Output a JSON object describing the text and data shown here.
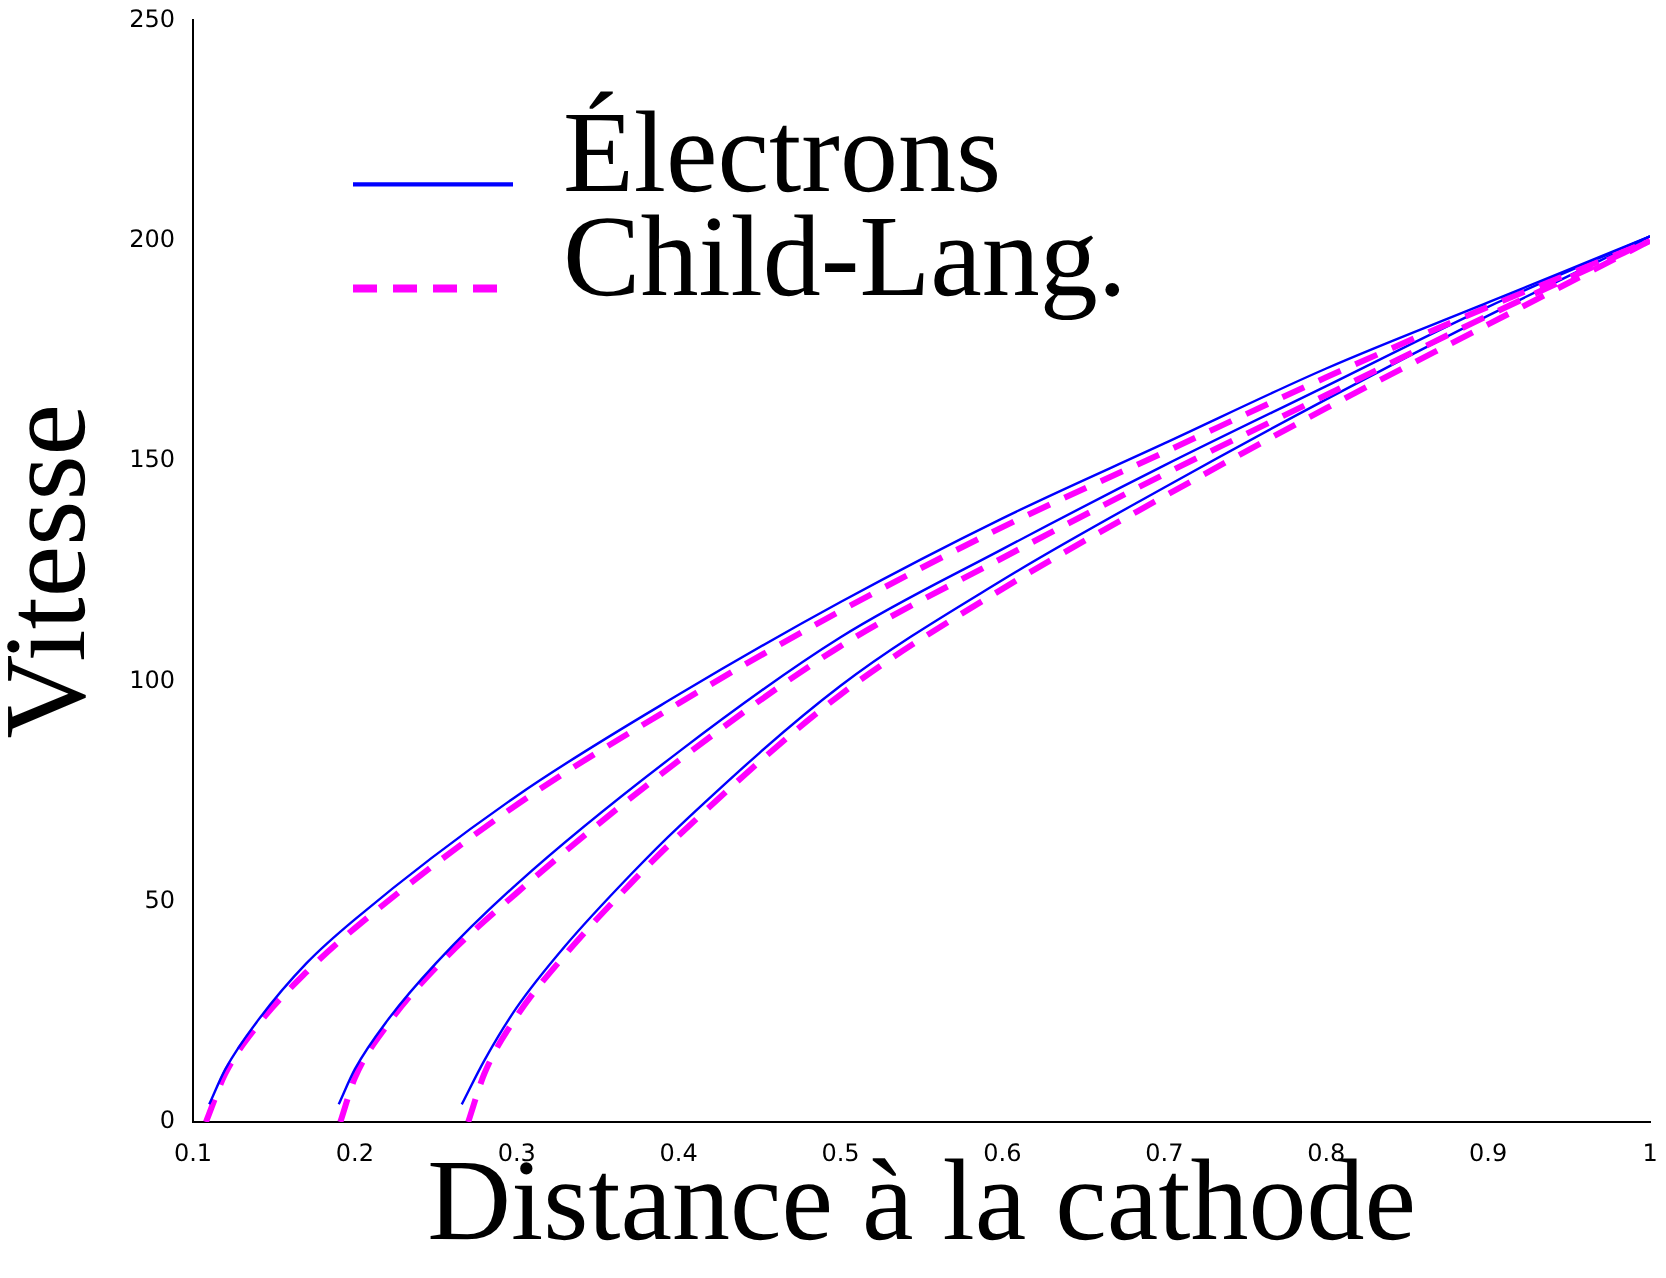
{
  "chart_data": {
    "type": "line",
    "xlabel": "Distance à la cathode",
    "ylabel": "Vitesse",
    "xlim": [
      0.1,
      1
    ],
    "xticks": [
      0.1,
      0.2,
      0.3,
      0.4,
      0.5,
      0.6,
      0.7,
      0.8,
      0.9,
      1
    ],
    "ylim": [
      0,
      250
    ],
    "yticks": [
      0,
      50,
      100,
      150,
      200,
      250
    ],
    "grid": false,
    "legend": "top left",
    "marker": "none",
    "series": [
      {
        "name": "Électrons",
        "color": "#0000ff",
        "line_style": "solid",
        "x": [
          0.11,
          0.12,
          0.14,
          0.17,
          0.2,
          0.3,
          0.4,
          0.5,
          0.6,
          0.7,
          0.8,
          0.9,
          1
        ],
        "values": [
          4,
          12,
          23,
          36,
          46,
          74,
          97,
          118,
          137,
          154,
          171,
          186,
          201
        ]
      },
      {
        "name": "Child-Lang.",
        "color": "#ff00ff",
        "line_style": "dashed",
        "x": [
          0.108,
          0.12,
          0.14,
          0.17,
          0.2,
          0.3,
          0.4,
          0.5,
          0.6,
          0.7,
          0.8,
          0.9,
          1
        ],
        "values": [
          0,
          11,
          22,
          34,
          44,
          72,
          95,
          116,
          135,
          152,
          169,
          185,
          200
        ]
      },
      {
        "color": "#0000ff",
        "line_style": "solid",
        "x": [
          0.19,
          0.2,
          0.22,
          0.25,
          0.3,
          0.4,
          0.5,
          0.6,
          0.7,
          0.8,
          0.9,
          1
        ],
        "values": [
          4,
          12,
          23,
          36,
          54,
          84,
          110,
          130,
          149,
          167,
          185,
          201
        ]
      },
      {
        "color": "#ff00ff",
        "line_style": "dashed",
        "x": [
          0.191,
          0.2,
          0.22,
          0.25,
          0.3,
          0.4,
          0.5,
          0.6,
          0.7,
          0.8,
          0.9,
          1
        ],
        "values": [
          0,
          10,
          22,
          35,
          52,
          82,
          108,
          128,
          147,
          165,
          183,
          200
        ]
      },
      {
        "color": "#0000ff",
        "line_style": "solid",
        "x": [
          0.266,
          0.28,
          0.3,
          0.33,
          0.37,
          0.4,
          0.5,
          0.6,
          0.7,
          0.8,
          0.9,
          1
        ],
        "values": [
          4,
          14,
          26,
          40,
          56,
          67,
          99,
          123,
          144,
          164,
          183,
          201
        ]
      },
      {
        "color": "#ff00ff",
        "line_style": "dashed",
        "x": [
          0.27,
          0.28,
          0.3,
          0.33,
          0.37,
          0.4,
          0.5,
          0.6,
          0.7,
          0.8,
          0.9,
          1
        ],
        "values": [
          0,
          11,
          24,
          38,
          54,
          65,
          97,
          121,
          142,
          162,
          181,
          200
        ]
      }
    ]
  }
}
